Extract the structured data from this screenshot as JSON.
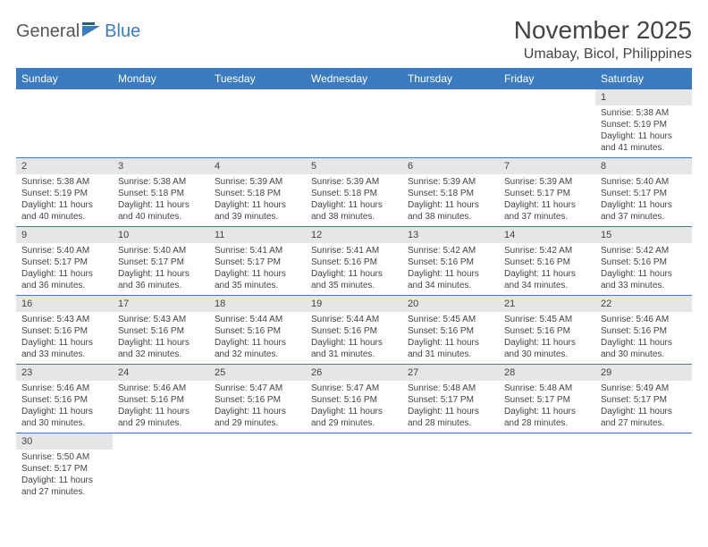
{
  "logo": {
    "part1": "General",
    "part2": "Blue"
  },
  "title": "November 2025",
  "location": "Umabay, Bicol, Philippines",
  "colors": {
    "header_bg": "#3b7bbf",
    "header_text": "#ffffff",
    "daynum_bg": "#e6e6e6",
    "cell_border": "#3b7bbf",
    "text": "#444444",
    "page_bg": "#ffffff"
  },
  "weekdays": [
    "Sunday",
    "Monday",
    "Tuesday",
    "Wednesday",
    "Thursday",
    "Friday",
    "Saturday"
  ],
  "weeks": [
    [
      null,
      null,
      null,
      null,
      null,
      null,
      {
        "n": "1",
        "sr": "Sunrise: 5:38 AM",
        "ss": "Sunset: 5:19 PM",
        "dl": "Daylight: 11 hours and 41 minutes."
      }
    ],
    [
      {
        "n": "2",
        "sr": "Sunrise: 5:38 AM",
        "ss": "Sunset: 5:19 PM",
        "dl": "Daylight: 11 hours and 40 minutes."
      },
      {
        "n": "3",
        "sr": "Sunrise: 5:38 AM",
        "ss": "Sunset: 5:18 PM",
        "dl": "Daylight: 11 hours and 40 minutes."
      },
      {
        "n": "4",
        "sr": "Sunrise: 5:39 AM",
        "ss": "Sunset: 5:18 PM",
        "dl": "Daylight: 11 hours and 39 minutes."
      },
      {
        "n": "5",
        "sr": "Sunrise: 5:39 AM",
        "ss": "Sunset: 5:18 PM",
        "dl": "Daylight: 11 hours and 38 minutes."
      },
      {
        "n": "6",
        "sr": "Sunrise: 5:39 AM",
        "ss": "Sunset: 5:18 PM",
        "dl": "Daylight: 11 hours and 38 minutes."
      },
      {
        "n": "7",
        "sr": "Sunrise: 5:39 AM",
        "ss": "Sunset: 5:17 PM",
        "dl": "Daylight: 11 hours and 37 minutes."
      },
      {
        "n": "8",
        "sr": "Sunrise: 5:40 AM",
        "ss": "Sunset: 5:17 PM",
        "dl": "Daylight: 11 hours and 37 minutes."
      }
    ],
    [
      {
        "n": "9",
        "sr": "Sunrise: 5:40 AM",
        "ss": "Sunset: 5:17 PM",
        "dl": "Daylight: 11 hours and 36 minutes."
      },
      {
        "n": "10",
        "sr": "Sunrise: 5:40 AM",
        "ss": "Sunset: 5:17 PM",
        "dl": "Daylight: 11 hours and 36 minutes."
      },
      {
        "n": "11",
        "sr": "Sunrise: 5:41 AM",
        "ss": "Sunset: 5:17 PM",
        "dl": "Daylight: 11 hours and 35 minutes."
      },
      {
        "n": "12",
        "sr": "Sunrise: 5:41 AM",
        "ss": "Sunset: 5:16 PM",
        "dl": "Daylight: 11 hours and 35 minutes."
      },
      {
        "n": "13",
        "sr": "Sunrise: 5:42 AM",
        "ss": "Sunset: 5:16 PM",
        "dl": "Daylight: 11 hours and 34 minutes."
      },
      {
        "n": "14",
        "sr": "Sunrise: 5:42 AM",
        "ss": "Sunset: 5:16 PM",
        "dl": "Daylight: 11 hours and 34 minutes."
      },
      {
        "n": "15",
        "sr": "Sunrise: 5:42 AM",
        "ss": "Sunset: 5:16 PM",
        "dl": "Daylight: 11 hours and 33 minutes."
      }
    ],
    [
      {
        "n": "16",
        "sr": "Sunrise: 5:43 AM",
        "ss": "Sunset: 5:16 PM",
        "dl": "Daylight: 11 hours and 33 minutes."
      },
      {
        "n": "17",
        "sr": "Sunrise: 5:43 AM",
        "ss": "Sunset: 5:16 PM",
        "dl": "Daylight: 11 hours and 32 minutes."
      },
      {
        "n": "18",
        "sr": "Sunrise: 5:44 AM",
        "ss": "Sunset: 5:16 PM",
        "dl": "Daylight: 11 hours and 32 minutes."
      },
      {
        "n": "19",
        "sr": "Sunrise: 5:44 AM",
        "ss": "Sunset: 5:16 PM",
        "dl": "Daylight: 11 hours and 31 minutes."
      },
      {
        "n": "20",
        "sr": "Sunrise: 5:45 AM",
        "ss": "Sunset: 5:16 PM",
        "dl": "Daylight: 11 hours and 31 minutes."
      },
      {
        "n": "21",
        "sr": "Sunrise: 5:45 AM",
        "ss": "Sunset: 5:16 PM",
        "dl": "Daylight: 11 hours and 30 minutes."
      },
      {
        "n": "22",
        "sr": "Sunrise: 5:46 AM",
        "ss": "Sunset: 5:16 PM",
        "dl": "Daylight: 11 hours and 30 minutes."
      }
    ],
    [
      {
        "n": "23",
        "sr": "Sunrise: 5:46 AM",
        "ss": "Sunset: 5:16 PM",
        "dl": "Daylight: 11 hours and 30 minutes."
      },
      {
        "n": "24",
        "sr": "Sunrise: 5:46 AM",
        "ss": "Sunset: 5:16 PM",
        "dl": "Daylight: 11 hours and 29 minutes."
      },
      {
        "n": "25",
        "sr": "Sunrise: 5:47 AM",
        "ss": "Sunset: 5:16 PM",
        "dl": "Daylight: 11 hours and 29 minutes."
      },
      {
        "n": "26",
        "sr": "Sunrise: 5:47 AM",
        "ss": "Sunset: 5:16 PM",
        "dl": "Daylight: 11 hours and 29 minutes."
      },
      {
        "n": "27",
        "sr": "Sunrise: 5:48 AM",
        "ss": "Sunset: 5:17 PM",
        "dl": "Daylight: 11 hours and 28 minutes."
      },
      {
        "n": "28",
        "sr": "Sunrise: 5:48 AM",
        "ss": "Sunset: 5:17 PM",
        "dl": "Daylight: 11 hours and 28 minutes."
      },
      {
        "n": "29",
        "sr": "Sunrise: 5:49 AM",
        "ss": "Sunset: 5:17 PM",
        "dl": "Daylight: 11 hours and 27 minutes."
      }
    ],
    [
      {
        "n": "30",
        "sr": "Sunrise: 5:50 AM",
        "ss": "Sunset: 5:17 PM",
        "dl": "Daylight: 11 hours and 27 minutes."
      },
      null,
      null,
      null,
      null,
      null,
      null
    ]
  ]
}
